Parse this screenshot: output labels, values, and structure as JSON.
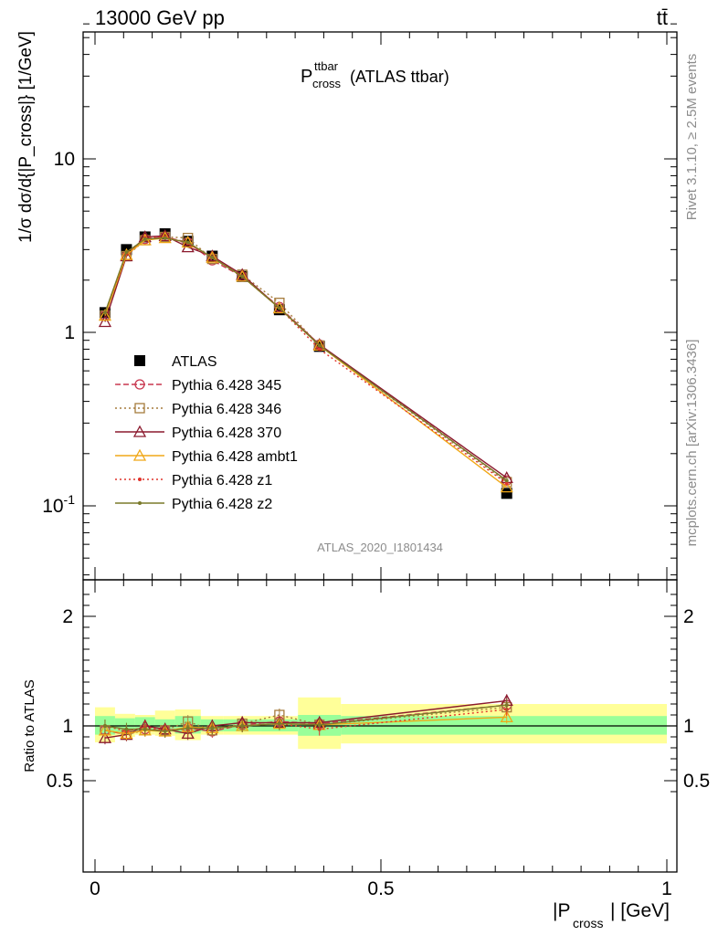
{
  "header": {
    "process": "13000 GeV pp",
    "final_state": "tt̄"
  },
  "title": {
    "main": "P",
    "superscript": "ttbar",
    "subscript": "cross",
    "suffix": "(ATLAS ttbar)"
  },
  "side_labels": {
    "rivet": "Rivet 3.1.10, ≥ 2.5M events",
    "mcplots": "mcplots.cern.ch [arXiv:1306.3436]"
  },
  "watermark": "ATLAS_2020_I1801434",
  "axes": {
    "ylabel_main": "1/σ dσ/d{|P_cross|} [1/GeV]",
    "ylabel_ratio": "Ratio to ATLAS",
    "xlabel": "|P_cross| [GeV]",
    "xlabel_main": "|P",
    "xlabel_sub": "cross",
    "xlabel_suffix": "| [GeV]"
  },
  "colors": {
    "ATLAS": "#000000",
    "p345": "#c8374f",
    "p346": "#a67c3d",
    "p370": "#8b1a2e",
    "ambt1": "#f0a818",
    "z1": "#e0342c",
    "z2": "#7a7a2a",
    "band_inner": "#99ff99",
    "band_outer": "#ffff99"
  },
  "chart_data": [
    {
      "type": "line",
      "panel": "main",
      "ylog": true,
      "xlim": [
        0,
        1
      ],
      "ylim": [
        0.04,
        60
      ],
      "ytick_labels": [
        "10^-1",
        "1",
        "10"
      ],
      "x": [
        0.0175,
        0.055,
        0.0875,
        0.1225,
        0.1625,
        0.205,
        0.2575,
        0.3225,
        0.3925,
        0.72
      ],
      "x_edges": [
        0.0,
        0.035,
        0.07,
        0.105,
        0.14,
        0.185,
        0.225,
        0.29,
        0.355,
        0.43,
        1.0
      ],
      "series": [
        {
          "name": "ATLAS",
          "key": "ATLAS",
          "marker": "square-filled",
          "style": "none",
          "values": [
            1.3,
            3.0,
            3.55,
            3.7,
            3.35,
            2.75,
            2.1,
            1.35,
            0.83,
            0.118
          ]
        },
        {
          "name": "Pythia 6.428 345",
          "key": "p345",
          "marker": "circle-open",
          "style": "dashed",
          "values": [
            1.25,
            2.75,
            3.45,
            3.55,
            3.3,
            2.6,
            2.1,
            1.4,
            0.85,
            0.14
          ]
        },
        {
          "name": "Pythia 6.428 346",
          "key": "p346",
          "marker": "square-open",
          "style": "dotted",
          "values": [
            1.25,
            2.75,
            3.4,
            3.55,
            3.5,
            2.65,
            2.15,
            1.48,
            0.84,
            0.137
          ]
        },
        {
          "name": "Pythia 6.428 370",
          "key": "p370",
          "marker": "triangle-open",
          "style": "solid",
          "values": [
            1.15,
            2.75,
            3.55,
            3.6,
            3.1,
            2.75,
            2.15,
            1.38,
            0.85,
            0.145
          ]
        },
        {
          "name": "Pythia 6.428 ambt1",
          "key": "ambt1",
          "marker": "triangle-open",
          "style": "solid",
          "values": [
            1.25,
            2.8,
            3.4,
            3.5,
            3.3,
            2.7,
            2.1,
            1.38,
            0.84,
            0.128
          ]
        },
        {
          "name": "Pythia 6.428 z1",
          "key": "z1",
          "marker": "dot",
          "style": "dotted",
          "values": [
            1.3,
            2.85,
            3.5,
            3.55,
            3.25,
            2.7,
            2.1,
            1.38,
            0.8,
            0.135
          ]
        },
        {
          "name": "Pythia 6.428 z2",
          "key": "z2",
          "marker": "dot",
          "style": "solid",
          "values": [
            1.3,
            2.9,
            3.45,
            3.5,
            3.3,
            2.7,
            2.1,
            1.38,
            0.84,
            0.14
          ]
        }
      ]
    },
    {
      "type": "line",
      "panel": "ratio",
      "xlim": [
        0,
        1
      ],
      "ylim": [
        0.4,
        2.35
      ],
      "ytick_labels": [
        "0.5",
        "1",
        "2"
      ],
      "xtick_labels": [
        "0",
        "0.5",
        "1"
      ],
      "bands": {
        "inner": [
          [
            0.92,
            1.09
          ],
          [
            0.94,
            1.07
          ],
          [
            0.95,
            1.08
          ],
          [
            0.95,
            1.06
          ],
          [
            0.93,
            1.09
          ],
          [
            0.95,
            1.06
          ],
          [
            0.95,
            1.06
          ],
          [
            0.95,
            1.06
          ],
          [
            0.91,
            1.1
          ],
          [
            0.92,
            1.09
          ]
        ],
        "outer": [
          [
            0.85,
            1.17
          ],
          [
            0.9,
            1.11
          ],
          [
            0.92,
            1.1
          ],
          [
            0.91,
            1.14
          ],
          [
            0.87,
            1.15
          ],
          [
            0.92,
            1.09
          ],
          [
            0.92,
            1.09
          ],
          [
            0.92,
            1.09
          ],
          [
            0.79,
            1.26
          ],
          [
            0.84,
            1.2
          ]
        ]
      },
      "series": [
        {
          "name": "Pythia 6.428 345",
          "key": "p345",
          "values": [
            0.96,
            0.92,
            0.97,
            0.96,
            0.98,
            0.95,
            1.01,
            1.04,
            1.02,
            1.19
          ]
        },
        {
          "name": "Pythia 6.428 346",
          "key": "p346",
          "values": [
            0.96,
            0.92,
            0.96,
            0.96,
            1.04,
            0.96,
            1.02,
            1.1,
            1.01,
            1.17
          ]
        },
        {
          "name": "Pythia 6.428 370",
          "key": "p370",
          "values": [
            0.89,
            0.92,
            1.0,
            0.97,
            0.93,
            1.0,
            1.03,
            1.03,
            1.03,
            1.23
          ]
        },
        {
          "name": "Pythia 6.428 ambt1",
          "key": "ambt1",
          "values": [
            0.96,
            0.93,
            0.96,
            0.95,
            0.99,
            0.98,
            1.0,
            1.02,
            1.01,
            1.08
          ]
        },
        {
          "name": "Pythia 6.428 z1",
          "key": "z1",
          "values": [
            1.0,
            0.95,
            0.99,
            0.96,
            0.97,
            0.98,
            1.0,
            1.02,
            0.97,
            1.15
          ]
        },
        {
          "name": "Pythia 6.428 z2",
          "key": "z2",
          "values": [
            1.0,
            0.97,
            0.97,
            0.95,
            0.98,
            0.98,
            1.0,
            1.02,
            1.01,
            1.19
          ]
        }
      ]
    }
  ]
}
